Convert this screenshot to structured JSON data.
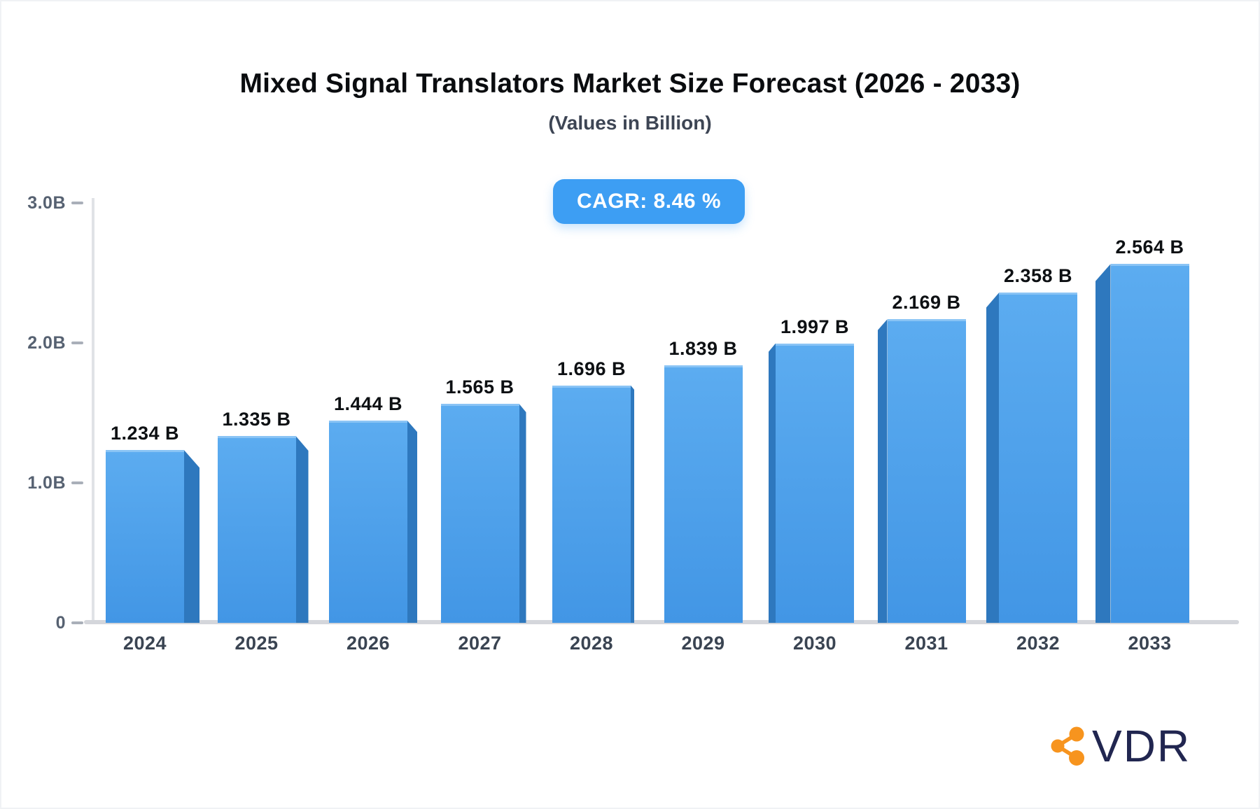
{
  "header": {
    "title": "Mixed Signal Translators Market Size Forecast (2026 - 2033)",
    "subtitle": "(Values in Billion)",
    "badge_label": "CAGR: 8.46 %"
  },
  "chart_data": {
    "type": "bar",
    "title": "Mixed Signal Translators Market Size Forecast (2026 - 2033)",
    "subtitle": "(Values in Billion)",
    "categories": [
      "2024",
      "2025",
      "2026",
      "2027",
      "2028",
      "2029",
      "2030",
      "2031",
      "2032",
      "2033"
    ],
    "values": [
      1.234,
      1.335,
      1.444,
      1.565,
      1.696,
      1.839,
      1.997,
      2.169,
      2.358,
      2.564
    ],
    "bar_labels": [
      "1.234 B",
      "1.335 B",
      "1.444 B",
      "1.565 B",
      "1.696 B",
      "1.839 B",
      "1.997 B",
      "2.169 B",
      "2.358 B",
      "2.564 B"
    ],
    "xlabel": "",
    "ylabel": "",
    "ylim": [
      0,
      3
    ],
    "y_ticks": [
      {
        "label": "3.0B",
        "value": 3.0
      },
      {
        "label": "2.0B",
        "value": 2.0
      },
      {
        "label": "1.0B",
        "value": 1.0
      },
      {
        "label": "0",
        "value": 0.0
      }
    ],
    "grid": false,
    "legend": false,
    "unit": "Billion",
    "cagr": "8.46 %",
    "colors": {
      "bar_front_top": "#5CACF0",
      "bar_front_bottom": "#4296E5",
      "bar_side": "#2E78BE",
      "bar_top_highlight": "#8AC4F5",
      "badge_background": "#3D9EF3",
      "axis": "#D4D6DB",
      "tick_text": "#566171",
      "year_text": "#3A4452",
      "value_text": "#0D1013"
    }
  },
  "logo": {
    "text": "VDR",
    "icon": "share-network-icon",
    "icon_color": "#F7941E",
    "text_color": "#212650"
  }
}
